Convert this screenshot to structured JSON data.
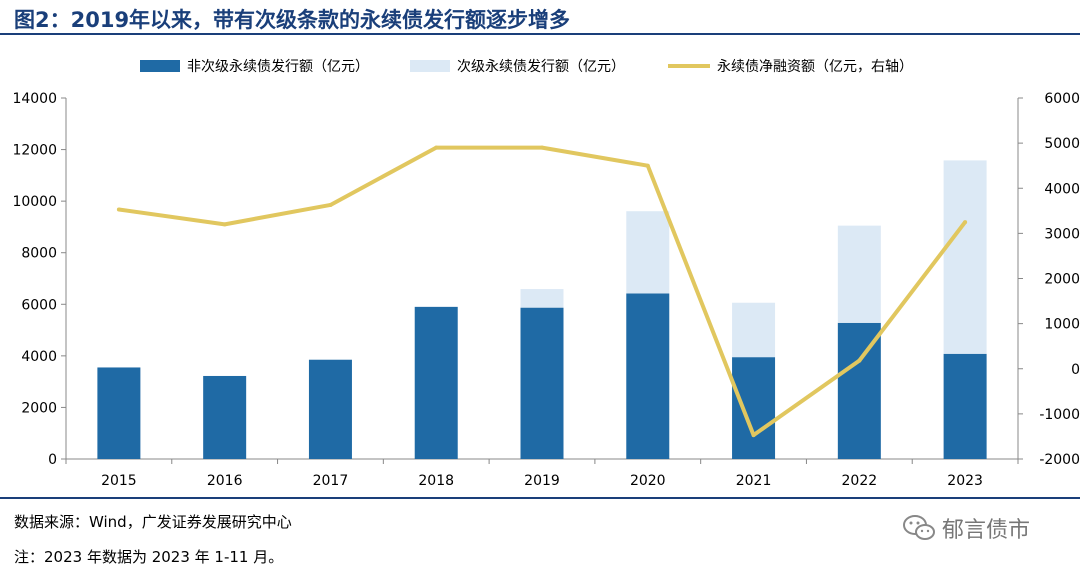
{
  "header": {
    "title": "图2：2019年以来，带有次级条款的永续债发行额逐步增多"
  },
  "footer": {
    "source": "数据来源：Wind，广发证券发展研究中心",
    "note": "注：2023 年数据为 2023 年 1-11 月。",
    "watermark": "郁言债市"
  },
  "colors": {
    "title": "#1a3f7a",
    "non_sub": "#1f6aa5",
    "sub": "#dce9f5",
    "net": "#e1c75f"
  },
  "chart_data": {
    "type": "bar",
    "stacked": true,
    "categories": [
      "2015",
      "2016",
      "2017",
      "2018",
      "2019",
      "2020",
      "2021",
      "2022",
      "2023"
    ],
    "series": [
      {
        "name": "非次级永续债发行额（亿元）",
        "type": "bar",
        "axis": "left",
        "values": [
          3550,
          3220,
          3850,
          5900,
          5870,
          6420,
          3950,
          5280,
          4080
        ]
      },
      {
        "name": "次级永续债发行额（亿元）",
        "type": "bar",
        "axis": "left",
        "values": [
          0,
          0,
          0,
          0,
          720,
          3190,
          2110,
          3770,
          7500
        ]
      },
      {
        "name": "永续债净融资额（亿元，右轴）",
        "type": "line",
        "axis": "right",
        "values": [
          3530,
          3200,
          3630,
          4900,
          4900,
          4500,
          -1470,
          180,
          3250
        ]
      }
    ],
    "y_left": {
      "min": 0,
      "max": 14000,
      "ticks": [
        "0",
        "2000",
        "4000",
        "6000",
        "8000",
        "10000",
        "12000",
        "14000"
      ]
    },
    "y_right": {
      "min": -2000,
      "max": 6000,
      "ticks": [
        "-2000",
        "-1000",
        "0",
        "1000",
        "2000",
        "3000",
        "4000",
        "5000",
        "6000"
      ]
    },
    "grid": false,
    "legend": "top"
  }
}
